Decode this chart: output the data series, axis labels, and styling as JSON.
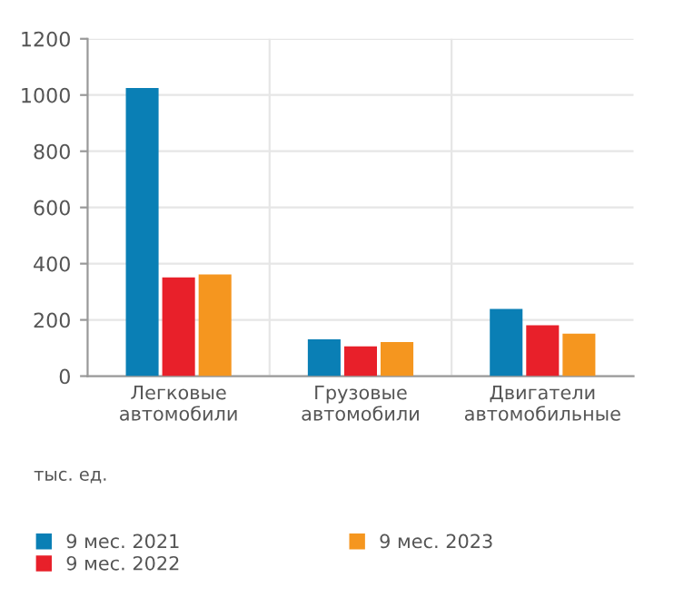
{
  "chart_data": {
    "type": "bar",
    "categories": [
      "Легковые\nавтомобили",
      "Грузовые\nавтомобили",
      "Двигатели\nавтомобильные"
    ],
    "series": [
      {
        "name": "9 мес. 2021",
        "color": "#0a7fb5",
        "values": [
          1025,
          131,
          239
        ]
      },
      {
        "name": "9 мес. 2022",
        "color": "#e8202a",
        "values": [
          351,
          106,
          181
        ]
      },
      {
        "name": "9 мес. 2023",
        "color": "#f5961f",
        "values": [
          362,
          121,
          151
        ]
      }
    ],
    "ylim": [
      0,
      1200
    ],
    "yticks": [
      0,
      200,
      400,
      600,
      800,
      1000,
      1200
    ],
    "grid": true,
    "legend": "bottom",
    "annotations": [
      "тыс. ед."
    ]
  }
}
